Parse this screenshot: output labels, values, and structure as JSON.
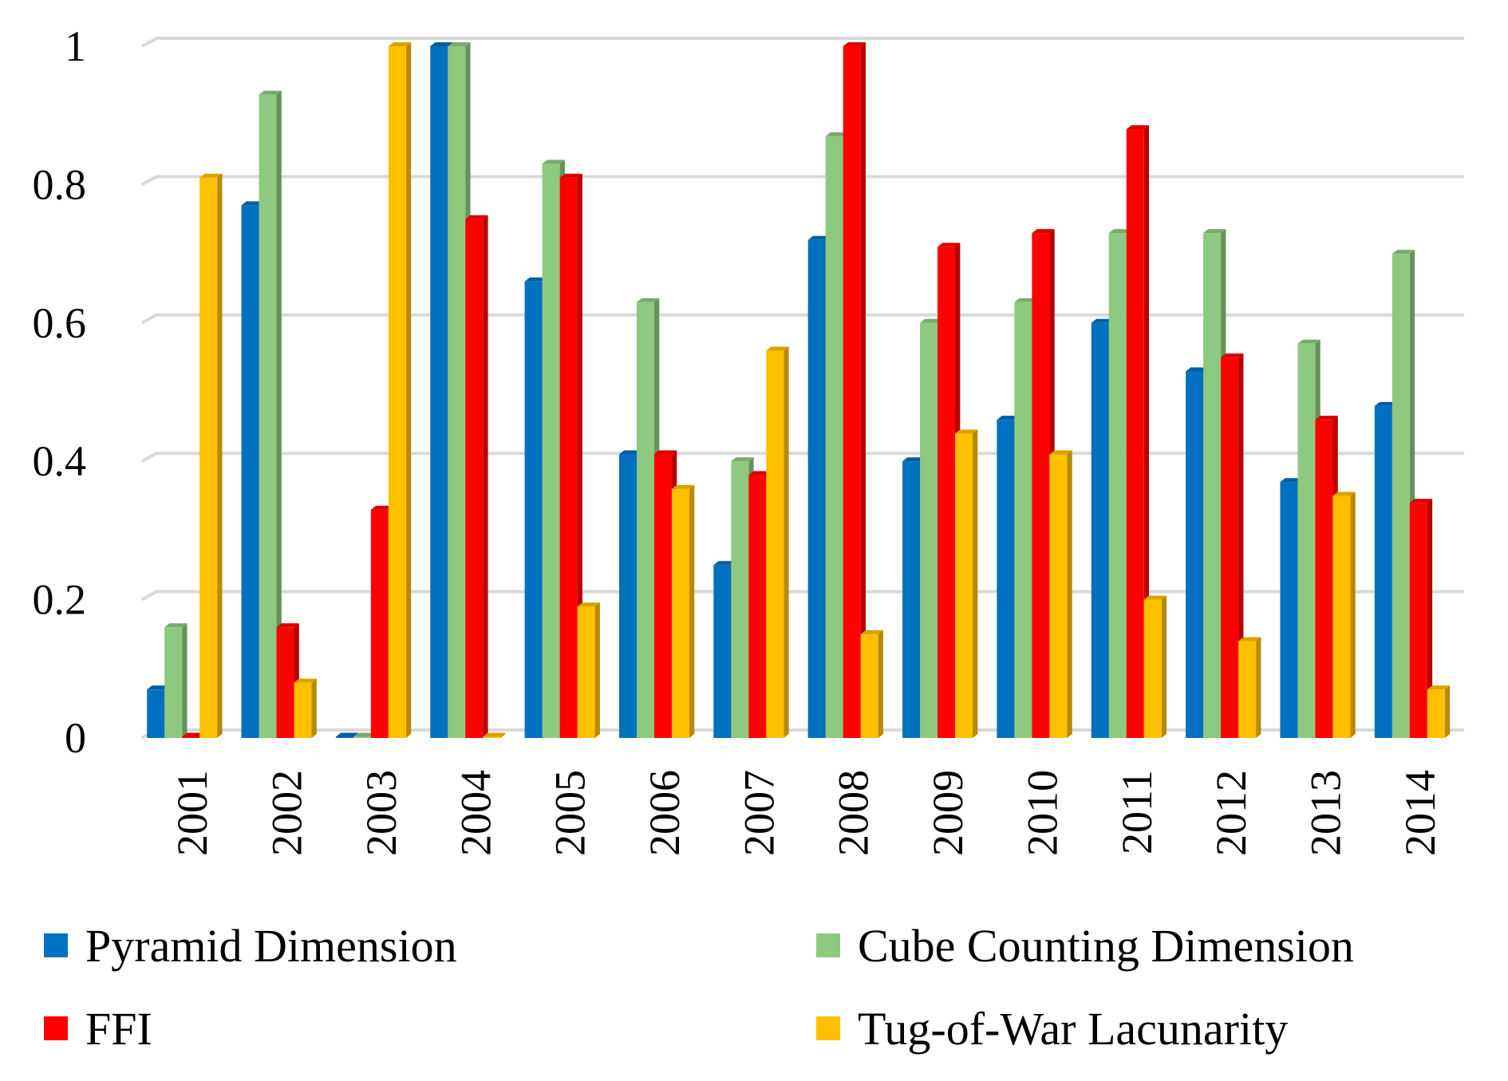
{
  "chart_data": {
    "type": "bar",
    "title": "",
    "xlabel": "",
    "ylabel": "",
    "ylim": [
      0,
      1
    ],
    "yticks": [
      "0",
      "0.2",
      "0.4",
      "0.6",
      "0.8",
      "1"
    ],
    "categories": [
      "2001",
      "2002",
      "2003",
      "2004",
      "2005",
      "2006",
      "2007",
      "2008",
      "2009",
      "2010",
      "2011",
      "2012",
      "2013",
      "2014"
    ],
    "grid": true,
    "legend_position": "bottom",
    "series": [
      {
        "name": "Pyramid Dimension",
        "color": "#0070C0",
        "values": [
          0.07,
          0.77,
          0.0,
          1.0,
          0.66,
          0.41,
          0.25,
          0.72,
          0.4,
          0.46,
          0.6,
          0.53,
          0.37,
          0.48
        ]
      },
      {
        "name": "Cube Counting Dimension",
        "color": "#8DC97E",
        "values": [
          0.16,
          0.93,
          0.0,
          1.0,
          0.83,
          0.63,
          0.4,
          0.87,
          0.6,
          0.63,
          0.73,
          0.73,
          0.57,
          0.7
        ]
      },
      {
        "name": "FFI",
        "color": "#FF0000",
        "values": [
          0.0,
          0.16,
          0.33,
          0.75,
          0.81,
          0.41,
          0.38,
          1.0,
          0.71,
          0.73,
          0.88,
          0.55,
          0.46,
          0.34
        ]
      },
      {
        "name": "Tug-of-War Lacunarity",
        "color": "#FFC000",
        "values": [
          0.81,
          0.08,
          1.0,
          0.0,
          0.19,
          0.36,
          0.56,
          0.15,
          0.44,
          0.41,
          0.2,
          0.14,
          0.35,
          0.07
        ]
      }
    ]
  }
}
